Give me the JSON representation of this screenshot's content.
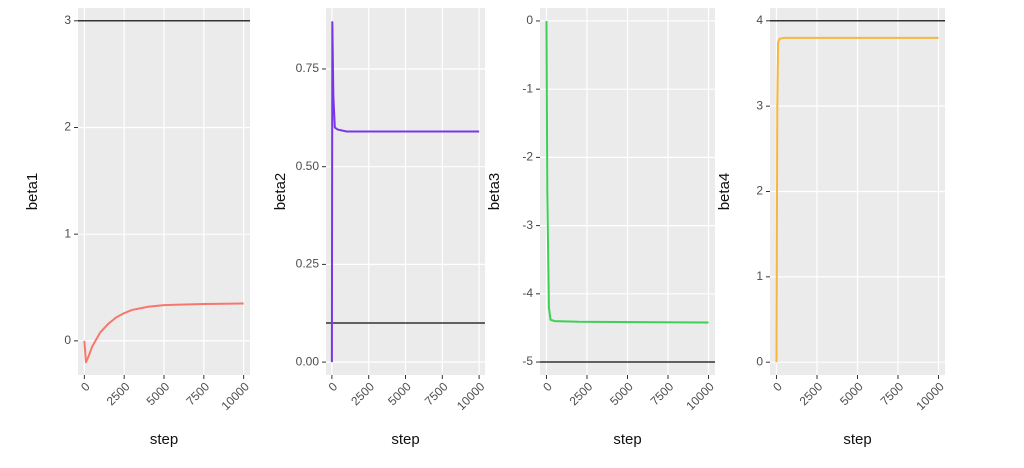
{
  "chart_data": [
    {
      "type": "line",
      "x_label": "step",
      "y_label": "beta1",
      "color": "#f8766d",
      "x": [
        0,
        100,
        250,
        500,
        1000,
        1500,
        2000,
        2500,
        3000,
        4000,
        5000,
        6000,
        7500,
        10000
      ],
      "values": [
        0,
        -0.2,
        -0.15,
        -0.05,
        0.08,
        0.16,
        0.22,
        0.26,
        0.29,
        0.32,
        0.335,
        0.34,
        0.345,
        0.35
      ],
      "xlim": [
        -400,
        10400
      ],
      "ylim": [
        -0.32,
        3.12
      ],
      "xticks": [
        0,
        2500,
        5000,
        7500,
        10000
      ],
      "yticks": [
        0,
        1,
        2,
        3
      ],
      "grid": true,
      "hline": 3,
      "hline_color": "#333333"
    },
    {
      "type": "line",
      "x_label": "step",
      "y_label": "beta2",
      "color": "#7b35e8",
      "x": [
        0,
        30,
        100,
        200,
        400,
        1000,
        5000,
        10000
      ],
      "values": [
        0,
        0.87,
        0.68,
        0.6,
        0.595,
        0.59,
        0.59,
        0.59
      ],
      "xlim": [
        -400,
        10400
      ],
      "ylim": [
        -0.033,
        0.906
      ],
      "xticks": [
        0,
        2500,
        5000,
        7500,
        10000
      ],
      "yticks": [
        {
          "value": 0,
          "label": "0.00"
        },
        0.25,
        {
          "value": 0.5,
          "label": "0.50"
        },
        0.75
      ],
      "grid": true,
      "hline": 0.1,
      "hline_color": "#333333"
    },
    {
      "type": "line",
      "x_label": "step",
      "y_label": "beta3",
      "color": "#3ecf55",
      "x": [
        0,
        50,
        150,
        250,
        500,
        2000,
        10000
      ],
      "values": [
        0,
        -2.5,
        -4.2,
        -4.38,
        -4.4,
        -4.41,
        -4.42
      ],
      "xlim": [
        -400,
        10400
      ],
      "ylim": [
        -5.19,
        0.19
      ],
      "xticks": [
        0,
        2500,
        5000,
        7500,
        10000
      ],
      "yticks": [
        -5,
        -4,
        -3,
        -2,
        -1,
        0
      ],
      "grid": true,
      "hline": -5,
      "hline_color": "#333333"
    },
    {
      "type": "line",
      "x_label": "step",
      "y_label": "beta4",
      "color": "#f5b83d",
      "x": [
        0,
        50,
        100,
        200,
        500,
        2000,
        10000
      ],
      "values": [
        0,
        3.0,
        3.75,
        3.79,
        3.8,
        3.8,
        3.8
      ],
      "xlim": [
        -400,
        10400
      ],
      "ylim": [
        -0.15,
        4.15
      ],
      "xticks": [
        0,
        2500,
        5000,
        7500,
        10000
      ],
      "yticks": [
        0,
        1,
        2,
        3,
        4
      ],
      "grid": true,
      "hline": 4,
      "hline_color": "#333333"
    }
  ]
}
